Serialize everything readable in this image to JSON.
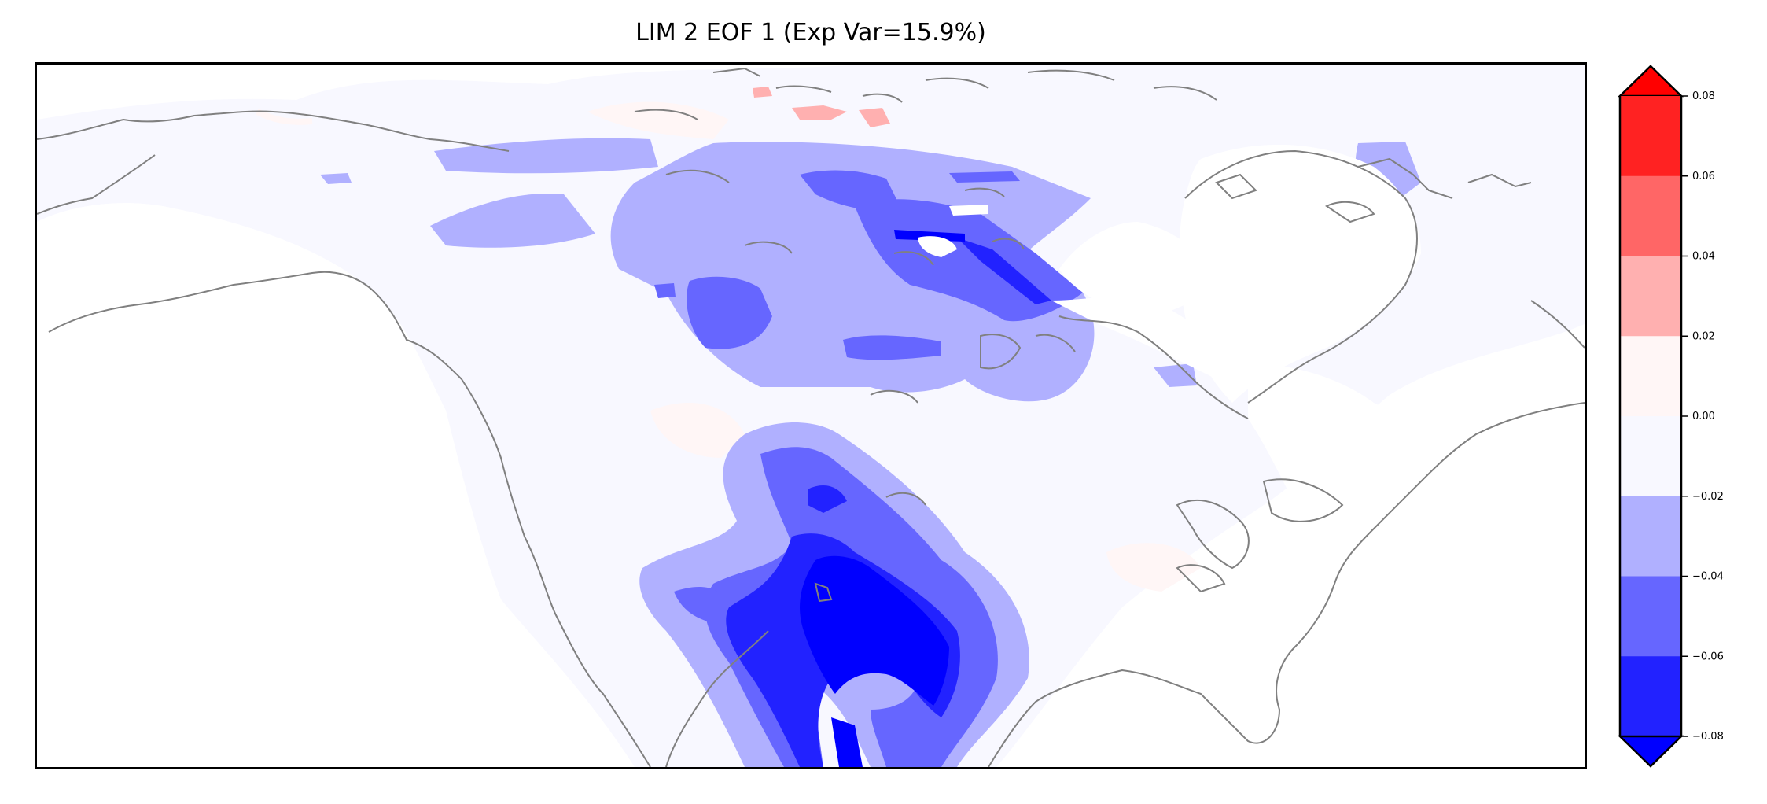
{
  "figure": {
    "title": "LIM 2 EOF 1 (Exp Var=15.9%)"
  },
  "colorbar": {
    "ticks": [
      "0.08",
      "0.06",
      "0.04",
      "0.02",
      "0.00",
      "−0.02",
      "−0.04",
      "−0.06",
      "−0.08"
    ],
    "levels_top_to_bottom": [
      {
        "range": "above 0.08",
        "color": "#ff0000"
      },
      {
        "range": "0.06 to 0.08",
        "color": "#ff2222"
      },
      {
        "range": "0.04 to 0.06",
        "color": "#ff6666"
      },
      {
        "range": "0.02 to 0.04",
        "color": "#ffb0b0"
      },
      {
        "range": "0.00 to 0.02",
        "color": "#fff6f6"
      },
      {
        "range": "-0.02 to 0.00",
        "color": "#f8f8ff"
      },
      {
        "range": "-0.04 to -0.02",
        "color": "#b0b0ff"
      },
      {
        "range": "-0.06 to -0.04",
        "color": "#6666ff"
      },
      {
        "range": "-0.08 to -0.06",
        "color": "#2222ff"
      },
      {
        "range": "below -0.08",
        "color": "#0000ff"
      }
    ]
  },
  "map": {
    "region": "North America",
    "coastline_color": "#808080"
  }
}
